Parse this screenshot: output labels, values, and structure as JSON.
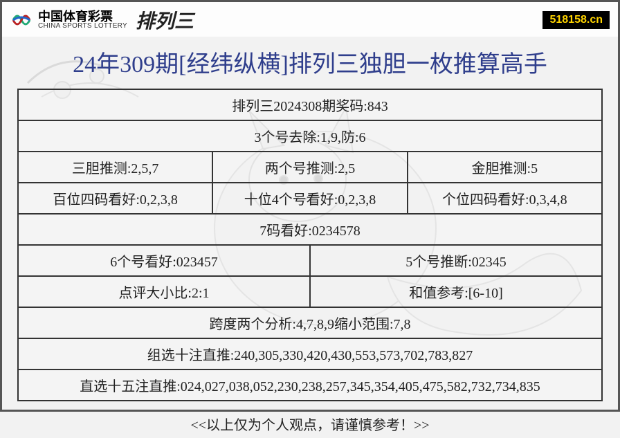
{
  "brand": {
    "cn": "中国体育彩票",
    "en": "CHINA SPORTS LOTTERY",
    "product": "排列三"
  },
  "site_url": "518158.cn",
  "title": "24年309期[经纬纵横]排列三独胆一枚推算高手",
  "rows": [
    {
      "cells": [
        "排列三2024308期奖码:843"
      ]
    },
    {
      "cells": [
        "3个号去除:1,9,防:6"
      ]
    },
    {
      "cells": [
        "三胆推测:2,5,7",
        "两个号推测:2,5",
        "金胆推测:5"
      ]
    },
    {
      "cells": [
        "百位四码看好:0,2,3,8",
        "十位4个号看好:0,2,3,8",
        "个位四码看好:0,3,4,8"
      ]
    },
    {
      "cells": [
        "7码看好:0234578"
      ]
    },
    {
      "cells": [
        "6个号看好:023457",
        "5个号推断:02345"
      ]
    },
    {
      "cells": [
        "点评大小比:2:1",
        "和值参考:[6-10]"
      ]
    },
    {
      "cells": [
        "跨度两个分析:4,7,8,9缩小范围:7,8"
      ]
    },
    {
      "cells": [
        "组选十注直推:240,305,330,420,430,553,573,702,783,827"
      ]
    },
    {
      "cells": [
        "直选十五注直推:024,027,038,052,230,238,257,345,354,405,475,582,732,734,835"
      ]
    }
  ],
  "footer": "<<以上仅为个人观点，请谨慎参考！>>",
  "colors": {
    "title": "#2f3e8c",
    "border": "#333333",
    "url_bg": "#000000",
    "url_fg": "#ffd400"
  }
}
